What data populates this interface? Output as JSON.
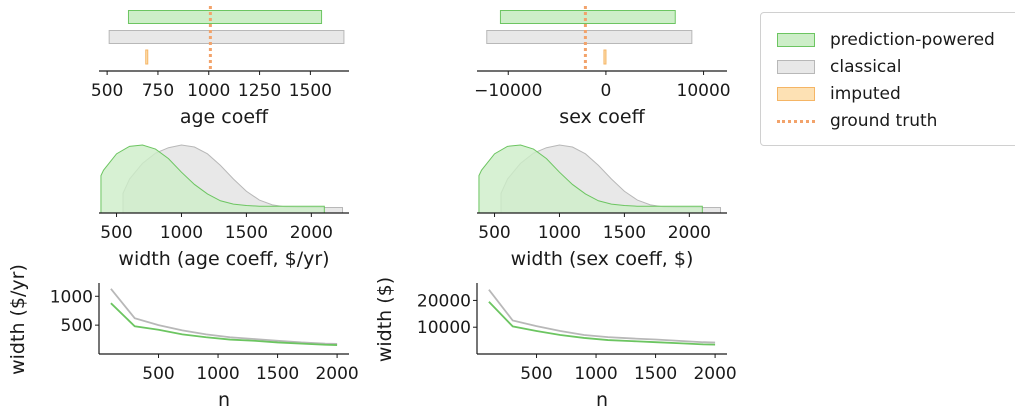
{
  "colors": {
    "ppi_fill": "#cdeec8",
    "ppi_edge": "#6cc561",
    "classical_fill": "#e8e8e8",
    "classical_edge": "#b8b8b8",
    "imputed_fill": "#fde1b4",
    "imputed_edge": "#f5b565",
    "truth": "#f2a36b",
    "axis": "#1a1a1a"
  },
  "legend": {
    "items": [
      {
        "label": "prediction-powered",
        "kind": "patch",
        "color": "ppi"
      },
      {
        "label": "classical",
        "kind": "patch",
        "color": "classical"
      },
      {
        "label": "imputed",
        "kind": "patch",
        "color": "imputed"
      },
      {
        "label": "ground truth",
        "kind": "dotted-line",
        "color": "truth"
      }
    ]
  },
  "chart_data": [
    {
      "type": "interval",
      "panel": "age-intervals",
      "xlabel": "age coeff",
      "xlim": [
        460,
        1690
      ],
      "xticks": [
        500,
        750,
        1000,
        1250,
        1500
      ],
      "xtick_labels": [
        "500",
        "750",
        "1000",
        "1250",
        "1500"
      ],
      "intervals": [
        {
          "name": "prediction-powered",
          "low": 605,
          "high": 1555
        },
        {
          "name": "classical",
          "low": 510,
          "high": 1665
        },
        {
          "name": "imputed",
          "low": 690,
          "high": 698
        }
      ],
      "ground_truth": 1008
    },
    {
      "type": "interval",
      "panel": "sex-intervals",
      "xlabel": "sex coeff",
      "xlim": [
        -13200,
        12400
      ],
      "xticks": [
        -10000,
        0,
        10000
      ],
      "xtick_labels": [
        "−10000",
        "0",
        "10000"
      ],
      "intervals": [
        {
          "name": "prediction-powered",
          "low": -10800,
          "high": 7100
        },
        {
          "name": "classical",
          "low": -12200,
          "high": 8800
        },
        {
          "name": "imputed",
          "low": -200,
          "high": -40
        }
      ],
      "ground_truth": -2100
    },
    {
      "type": "area",
      "panel": "age-width-density",
      "xlabel": "width (age coeff, $/yr)",
      "xlim": [
        365,
        2290
      ],
      "xticks": [
        500,
        1000,
        1500,
        2000
      ],
      "xtick_labels": [
        "500",
        "1000",
        "1500",
        "2000"
      ],
      "series": [
        {
          "name": "classical",
          "x": [
            550,
            600,
            700,
            800,
            900,
            1000,
            1100,
            1200,
            1300,
            1400,
            1500,
            1600,
            1700,
            1800,
            1900,
            2000,
            2100,
            2200,
            2240
          ],
          "y": [
            0.29,
            0.5,
            0.73,
            0.88,
            0.96,
            1.0,
            0.97,
            0.87,
            0.7,
            0.5,
            0.32,
            0.19,
            0.12,
            0.09,
            0.08,
            0.08,
            0.08,
            0.08,
            0.08
          ]
        },
        {
          "name": "prediction-powered",
          "x": [
            380,
            400,
            500,
            600,
            700,
            800,
            900,
            1000,
            1100,
            1200,
            1300,
            1400,
            1500,
            1600,
            1700,
            1800,
            1900,
            2000,
            2100
          ],
          "y": [
            0.55,
            0.63,
            0.87,
            0.98,
            1.0,
            0.94,
            0.8,
            0.6,
            0.42,
            0.28,
            0.18,
            0.13,
            0.11,
            0.1,
            0.1,
            0.1,
            0.1,
            0.1,
            0.1
          ]
        }
      ]
    },
    {
      "type": "area",
      "panel": "sex-width-density",
      "xlabel": "width (sex coeff, $)",
      "xlim": [
        365,
        2290
      ],
      "xticks": [
        500,
        1000,
        1500,
        2000
      ],
      "xtick_labels": [
        "500",
        "1000",
        "1500",
        "2000"
      ],
      "series": [
        {
          "name": "classical",
          "x": [
            550,
            600,
            700,
            800,
            900,
            1000,
            1100,
            1200,
            1300,
            1400,
            1500,
            1600,
            1700,
            1800,
            1900,
            2000,
            2100,
            2200,
            2240
          ],
          "y": [
            0.29,
            0.5,
            0.73,
            0.88,
            0.96,
            1.0,
            0.97,
            0.87,
            0.7,
            0.5,
            0.32,
            0.19,
            0.12,
            0.09,
            0.08,
            0.08,
            0.08,
            0.08,
            0.08
          ]
        },
        {
          "name": "prediction-powered",
          "x": [
            380,
            400,
            500,
            600,
            700,
            800,
            900,
            1000,
            1100,
            1200,
            1300,
            1400,
            1500,
            1600,
            1700,
            1800,
            1900,
            2000,
            2100
          ],
          "y": [
            0.55,
            0.63,
            0.87,
            0.98,
            1.0,
            0.94,
            0.8,
            0.6,
            0.42,
            0.28,
            0.18,
            0.13,
            0.11,
            0.1,
            0.1,
            0.1,
            0.1,
            0.1,
            0.1
          ]
        }
      ]
    },
    {
      "type": "line",
      "panel": "age-width-vs-n",
      "xlabel": "n",
      "ylabel": "width ($/yr)",
      "xlim": [
        0,
        2100
      ],
      "ylim": [
        0,
        1230
      ],
      "xticks": [
        500,
        1000,
        1500,
        2000
      ],
      "xtick_labels": [
        "500",
        "1000",
        "1500",
        "2000"
      ],
      "yticks": [
        500,
        1000
      ],
      "ytick_labels": [
        "500",
        "1000"
      ],
      "series": [
        {
          "name": "classical",
          "x": [
            100,
            300,
            500,
            700,
            900,
            1100,
            1300,
            1500,
            1700,
            1900,
            2000
          ],
          "y": [
            1130,
            620,
            500,
            410,
            340,
            290,
            260,
            230,
            200,
            180,
            175
          ]
        },
        {
          "name": "prediction-powered",
          "x": [
            100,
            300,
            500,
            700,
            900,
            1100,
            1300,
            1500,
            1700,
            1900,
            2000
          ],
          "y": [
            880,
            480,
            420,
            340,
            290,
            250,
            230,
            200,
            180,
            160,
            155
          ]
        }
      ]
    },
    {
      "type": "line",
      "panel": "sex-width-vs-n",
      "xlabel": "n",
      "ylabel": "width ($)",
      "xlim": [
        0,
        2100
      ],
      "ylim": [
        0,
        26500
      ],
      "xticks": [
        500,
        1000,
        1500,
        2000
      ],
      "xtick_labels": [
        "500",
        "1000",
        "1500",
        "2000"
      ],
      "yticks": [
        10000,
        20000
      ],
      "ytick_labels": [
        "10000",
        "20000"
      ],
      "series": [
        {
          "name": "classical",
          "x": [
            100,
            300,
            500,
            700,
            900,
            1100,
            1300,
            1500,
            1700,
            1900,
            2000
          ],
          "y": [
            24000,
            12500,
            10400,
            8600,
            7100,
            6300,
            5800,
            5400,
            4900,
            4400,
            4300
          ]
        },
        {
          "name": "prediction-powered",
          "x": [
            100,
            300,
            500,
            700,
            900,
            1100,
            1300,
            1500,
            1700,
            1900,
            2000
          ],
          "y": [
            19500,
            10300,
            8600,
            7100,
            6000,
            5200,
            4800,
            4400,
            4000,
            3600,
            3500
          ]
        }
      ]
    }
  ]
}
